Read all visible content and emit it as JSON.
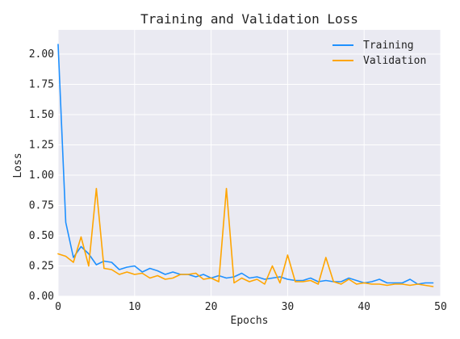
{
  "chart_data": {
    "type": "line",
    "title": "Training and Validation Loss",
    "xlabel": "Epochs",
    "ylabel": "Loss",
    "xlim": [
      0,
      50
    ],
    "ylim": [
      0,
      2.2
    ],
    "xticks": [
      "0",
      "10",
      "20",
      "30",
      "40",
      "50"
    ],
    "yticks": [
      "0.00",
      "0.25",
      "0.50",
      "0.75",
      "1.00",
      "1.25",
      "1.50",
      "1.75",
      "2.00"
    ],
    "grid": true,
    "legend_position": "top-right",
    "background": "#eaeaf2",
    "x": [
      0,
      1,
      2,
      3,
      4,
      5,
      6,
      7,
      8,
      9,
      10,
      11,
      12,
      13,
      14,
      15,
      16,
      17,
      18,
      19,
      20,
      21,
      22,
      23,
      24,
      25,
      26,
      27,
      28,
      29,
      30,
      31,
      32,
      33,
      34,
      35,
      36,
      37,
      38,
      39,
      40,
      41,
      42,
      43,
      44,
      45,
      46,
      47,
      48,
      49
    ],
    "series": [
      {
        "name": "Training",
        "color": "#1e90ff",
        "values": [
          2.08,
          0.61,
          0.32,
          0.41,
          0.35,
          0.26,
          0.29,
          0.28,
          0.22,
          0.24,
          0.25,
          0.2,
          0.23,
          0.21,
          0.18,
          0.2,
          0.18,
          0.18,
          0.16,
          0.18,
          0.15,
          0.17,
          0.15,
          0.16,
          0.19,
          0.15,
          0.16,
          0.14,
          0.15,
          0.16,
          0.14,
          0.13,
          0.13,
          0.15,
          0.12,
          0.13,
          0.12,
          0.12,
          0.15,
          0.13,
          0.11,
          0.12,
          0.14,
          0.11,
          0.11,
          0.11,
          0.14,
          0.1,
          0.11,
          0.11
        ]
      },
      {
        "name": "Validation",
        "color": "#ffa500",
        "values": [
          0.35,
          0.33,
          0.28,
          0.49,
          0.25,
          0.89,
          0.23,
          0.22,
          0.18,
          0.2,
          0.18,
          0.19,
          0.15,
          0.17,
          0.14,
          0.15,
          0.18,
          0.18,
          0.19,
          0.14,
          0.15,
          0.12,
          0.89,
          0.11,
          0.15,
          0.12,
          0.14,
          0.1,
          0.25,
          0.11,
          0.34,
          0.12,
          0.12,
          0.13,
          0.1,
          0.32,
          0.12,
          0.1,
          0.14,
          0.1,
          0.11,
          0.1,
          0.1,
          0.09,
          0.1,
          0.1,
          0.09,
          0.1,
          0.09,
          0.08
        ]
      }
    ]
  }
}
